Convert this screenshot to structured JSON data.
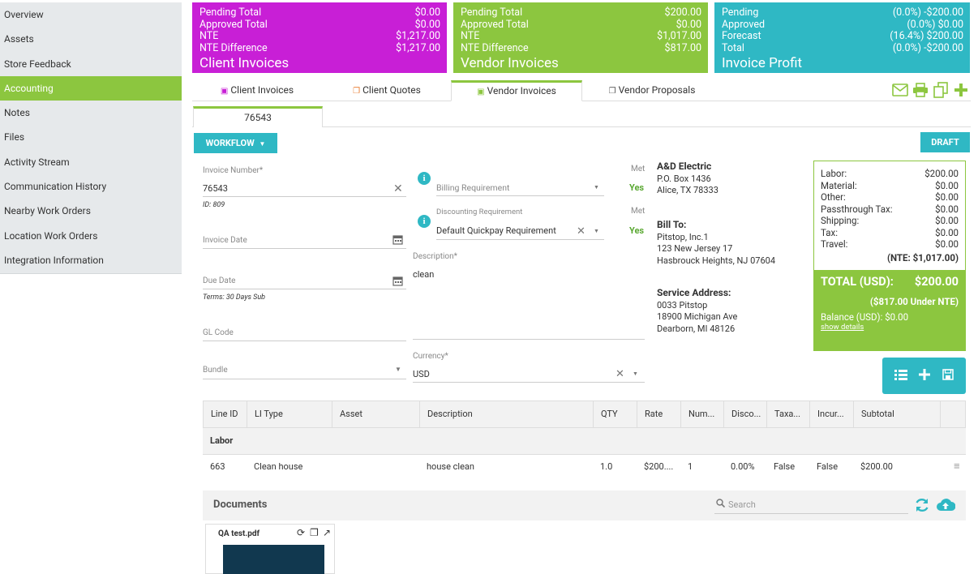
{
  "sidebar": {
    "items": [
      {
        "label": "Overview"
      },
      {
        "label": "Assets"
      },
      {
        "label": "Store Feedback"
      },
      {
        "label": "Accounting"
      },
      {
        "label": "Notes"
      },
      {
        "label": "Files"
      },
      {
        "label": "Activity Stream"
      },
      {
        "label": "Communication History"
      },
      {
        "label": "Nearby Work Orders"
      },
      {
        "label": "Location Work Orders"
      },
      {
        "label": "Integration Information"
      }
    ],
    "active": "Accounting"
  },
  "cards": [
    {
      "title": "Client Invoices",
      "color": "#c81fd6",
      "rows": [
        {
          "label": "Pending Total",
          "value": "$0.00"
        },
        {
          "label": "Approved Total",
          "value": "$0.00"
        },
        {
          "label": "NTE",
          "value": "$1,217.00"
        },
        {
          "label": "NTE Difference",
          "value": "$1,217.00"
        }
      ]
    },
    {
      "title": "Vendor Invoices",
      "color": "#8cc63f",
      "rows": [
        {
          "label": "Pending Total",
          "value": "$200.00"
        },
        {
          "label": "Approved Total",
          "value": "$0.00"
        },
        {
          "label": "NTE",
          "value": "$1,017.00"
        },
        {
          "label": "NTE Difference",
          "value": "$817.00"
        }
      ]
    },
    {
      "title": "Invoice Profit",
      "color": "#2fb8c4",
      "rows": [
        {
          "label": "Pending",
          "value": "(0.0%) -$200.00"
        },
        {
          "label": "Approved",
          "value": "(0.0%) $0.00"
        },
        {
          "label": "Forecast",
          "value": "(16.4%) $200.00"
        },
        {
          "label": "Total",
          "value": "(0.0%) -$200.00"
        }
      ]
    }
  ],
  "tabs": [
    {
      "label": "Client Invoices",
      "icon": "money-icon"
    },
    {
      "label": "Client Quotes",
      "icon": "document-icon"
    },
    {
      "label": "Vendor Invoices",
      "icon": "money-icon"
    },
    {
      "label": "Vendor Proposals",
      "icon": "document-icon"
    }
  ],
  "subtab": "76543",
  "workflow_label": "WORKFLOW",
  "status_label": "DRAFT",
  "form": {
    "invoice_number_label": "Invoice Number*",
    "invoice_number": "76543",
    "id_note": "ID: 809",
    "invoice_date_label": "Invoice Date",
    "due_date_label": "Due Date",
    "terms_note": "Terms: 30 Days Sub",
    "gl_code_label": "GL Code",
    "bundle_label": "Bundle",
    "billing_req_label": "Billing Requirement",
    "met1": "Met",
    "yes1": "Yes",
    "discount_req_label": "Discounting Requirement",
    "discount_req_value": "Default Quickpay Requirement",
    "met2": "Met",
    "yes2": "Yes",
    "description_label": "Description*",
    "description": "clean",
    "currency_label": "Currency*",
    "currency": "USD"
  },
  "vendor": {
    "name": "A&D Electric",
    "line1": "P.O. Box 1436",
    "line2": "Alice, TX 78333"
  },
  "bill_to": {
    "title": "Bill To:",
    "line1": "Pitstop, Inc.1",
    "line2": "123 New Jersey 17",
    "line3": "Hasbrouck Heights, NJ 07604"
  },
  "service": {
    "title": "Service Address:",
    "line1": "0033 Pitstop",
    "line2": "18900 Michigan Ave",
    "line3": "Dearborn, MI 48126"
  },
  "totals": {
    "rows": [
      {
        "label": "Labor:",
        "value": "$200.00"
      },
      {
        "label": "Material:",
        "value": "$0.00"
      },
      {
        "label": "Other:",
        "value": "$0.00"
      },
      {
        "label": "Passthrough Tax:",
        "value": "$0.00"
      },
      {
        "label": "Shipping:",
        "value": "$0.00"
      },
      {
        "label": "Tax:",
        "value": "$0.00"
      },
      {
        "label": "Travel:",
        "value": "$0.00"
      }
    ],
    "nte": "(NTE: $1,017.00)",
    "total_label": "TOTAL (USD):",
    "total_value": "$200.00",
    "under_nte": "($817.00 Under NTE)",
    "balance": "Balance (USD): $0.00",
    "show_details": "show details"
  },
  "table": {
    "headers": [
      "Line ID",
      "LI Type",
      "Asset",
      "Description",
      "QTY",
      "Rate",
      "Num...",
      "Disco...",
      "Taxa...",
      "Incur...",
      "Subtotal"
    ],
    "group": "Labor",
    "rows": [
      [
        "663",
        "Clean house",
        "",
        "house clean",
        "1.0",
        "$200....",
        "1",
        "0.00%",
        "False",
        "False",
        "$200.00"
      ]
    ]
  },
  "documents": {
    "title": "Documents",
    "search_placeholder": "Search",
    "file": "QA test.pdf"
  }
}
